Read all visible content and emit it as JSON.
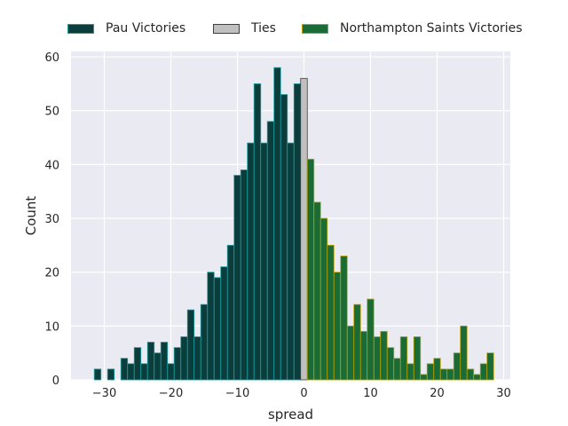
{
  "chart_data": {
    "type": "bar",
    "title": "",
    "xlabel": "spread",
    "ylabel": "Count",
    "xlim": [
      -35,
      31
    ],
    "ylim": [
      0,
      61
    ],
    "xticks": [
      "−30",
      "−20",
      "−10",
      "0",
      "10",
      "20",
      "30"
    ],
    "xtick_values": [
      -30,
      -20,
      -10,
      0,
      10,
      20,
      30
    ],
    "yticks": [
      "0",
      "10",
      "20",
      "30",
      "40",
      "50",
      "60"
    ],
    "ytick_values": [
      0,
      10,
      20,
      30,
      40,
      50,
      60
    ],
    "grid": true,
    "legend_position": "top-center",
    "series": [
      {
        "name": "Pau Victories",
        "color": "#0b3d3d",
        "edge_color": "#1aa0a0",
        "x": [
          -31,
          -29,
          -27,
          -26,
          -25,
          -24,
          -23,
          -22,
          -21,
          -20,
          -19,
          -18,
          -17,
          -16,
          -15,
          -14,
          -13,
          -12,
          -11,
          -10,
          -9,
          -8,
          -7,
          -6,
          -5,
          -4,
          -3,
          -2,
          -1
        ],
        "values": [
          2,
          2,
          4,
          3,
          6,
          3,
          7,
          5,
          7,
          3,
          6,
          8,
          13,
          8,
          14,
          20,
          19,
          21,
          25,
          38,
          39,
          44,
          55,
          44,
          48,
          58,
          53,
          44,
          55
        ]
      },
      {
        "name": "Ties",
        "color": "#c0c0c0",
        "edge_color": "#404040",
        "x": [
          0
        ],
        "values": [
          56
        ]
      },
      {
        "name": "Northampton Saints Victories",
        "color": "#1a6b35",
        "edge_color": "#b8a000",
        "x": [
          1,
          2,
          3,
          4,
          5,
          6,
          7,
          8,
          9,
          10,
          11,
          12,
          13,
          14,
          15,
          16,
          17,
          18,
          19,
          20,
          21,
          22,
          23,
          24,
          25,
          26,
          27,
          28
        ],
        "values": [
          41,
          33,
          30,
          25,
          20,
          23,
          10,
          14,
          9,
          15,
          8,
          9,
          6,
          4,
          8,
          3,
          8,
          1,
          3,
          4,
          2,
          2,
          5,
          10,
          2,
          1,
          3,
          5
        ]
      }
    ]
  },
  "colors": {
    "plot_background": "#eaeaf2",
    "grid": "#ffffff",
    "text": "#262626"
  }
}
